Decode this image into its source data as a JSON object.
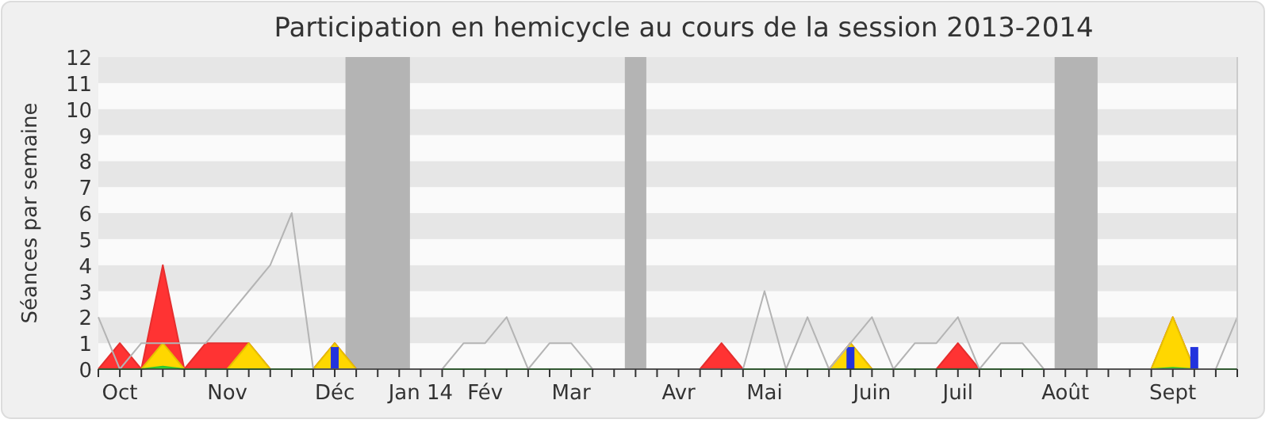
{
  "chart_data": {
    "type": "area",
    "title": "Participation en hemicycle au cours de la session 2013-2014",
    "ylabel": "Séances par semaine",
    "categories": [
      null,
      "Oct",
      null,
      null,
      null,
      null,
      "Nov",
      null,
      null,
      null,
      null,
      "Déc",
      null,
      null,
      null,
      "Jan 14",
      null,
      null,
      "Fév",
      null,
      null,
      null,
      "Mar",
      null,
      null,
      null,
      null,
      "Avr",
      null,
      null,
      null,
      "Mai",
      null,
      null,
      null,
      null,
      "Juin",
      null,
      null,
      null,
      "Juil",
      null,
      null,
      null,
      null,
      "Août",
      null,
      null,
      null,
      null,
      "Sept",
      null,
      null,
      null
    ],
    "series": [
      {
        "color": "#ff3333",
        "values": [
          0,
          1,
          0,
          4,
          0,
          1,
          1,
          1,
          0,
          0,
          0,
          1,
          0,
          0,
          0,
          0,
          0,
          0,
          0,
          0,
          0,
          0,
          0,
          0,
          0,
          0,
          0,
          0,
          0,
          1,
          0,
          0,
          0,
          0,
          0,
          1,
          0,
          0,
          0,
          0,
          1,
          0,
          0,
          0,
          0,
          0,
          0,
          0,
          0,
          0,
          2,
          0,
          0,
          0
        ]
      },
      {
        "color": "#ffd700",
        "values": [
          0,
          0,
          0,
          1,
          0,
          0,
          0,
          1,
          0,
          0,
          0,
          1,
          0,
          0,
          0,
          0,
          0,
          0,
          0,
          0,
          0,
          0,
          0,
          0,
          0,
          0,
          0,
          0,
          0,
          0,
          0,
          0,
          0,
          0,
          0,
          1,
          0,
          0,
          0,
          0,
          0,
          0,
          0,
          0,
          0,
          0,
          0,
          0,
          0,
          0,
          2,
          0,
          0,
          0
        ]
      },
      {
        "color": "#33dd33",
        "values": [
          0,
          0,
          0,
          0.1,
          0,
          0,
          0,
          0,
          0,
          0,
          0,
          0,
          0,
          0,
          0,
          0,
          0,
          0,
          0,
          0,
          0,
          0,
          0,
          0,
          0,
          0,
          0,
          0,
          0,
          0,
          0,
          0,
          0,
          0,
          0,
          0,
          0,
          0,
          0,
          0,
          0,
          0,
          0,
          0,
          0,
          0,
          0,
          0,
          0,
          0,
          0.05,
          0,
          0,
          0
        ]
      },
      {
        "type": "bar",
        "color": "#2233dd",
        "values": [
          null,
          null,
          null,
          null,
          null,
          null,
          null,
          null,
          null,
          null,
          null,
          0.85,
          null,
          null,
          null,
          null,
          null,
          null,
          null,
          null,
          null,
          null,
          null,
          null,
          null,
          null,
          null,
          null,
          null,
          null,
          null,
          null,
          null,
          null,
          null,
          0.85,
          null,
          null,
          null,
          null,
          null,
          null,
          null,
          null,
          null,
          null,
          null,
          null,
          null,
          null,
          null,
          0.85,
          null,
          null
        ]
      },
      {
        "type": "line",
        "color": "#b4b4b4",
        "values": [
          2,
          0,
          1,
          1,
          1,
          1,
          2,
          3,
          4,
          6,
          0,
          0,
          0,
          0,
          0,
          0,
          0,
          1,
          1,
          2,
          0,
          1,
          1,
          0,
          0,
          0,
          0,
          0,
          0,
          0,
          0,
          3,
          0,
          2,
          0,
          1,
          2,
          0,
          1,
          1,
          2,
          0,
          1,
          1,
          0,
          0,
          0,
          0,
          0,
          0,
          0,
          0,
          0,
          2
        ]
      }
    ],
    "ylim": [
      0,
      12
    ],
    "yticks": [
      0,
      1,
      2,
      3,
      4,
      5,
      6,
      7,
      8,
      9,
      10,
      11,
      12
    ]
  }
}
